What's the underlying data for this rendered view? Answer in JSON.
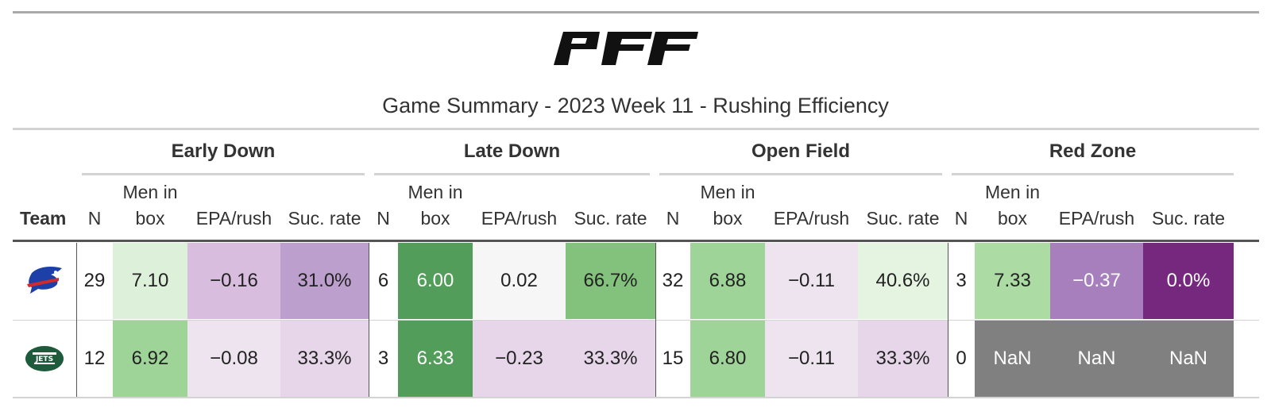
{
  "logo_text": "PFF",
  "title": "Game Summary - 2023 Week 11 - Rushing Efficiency",
  "team_header": "Team",
  "groups": [
    "Early Down",
    "Late Down",
    "Open Field",
    "Red Zone"
  ],
  "subcols": {
    "n": "N",
    "men_l1": "Men in",
    "men_l2": "box",
    "epa": "EPA/rush",
    "suc": "Suc. rate"
  },
  "rows": [
    {
      "team_icon": "bills-logo-icon",
      "cells": [
        "29",
        "7.10",
        "−0.16",
        "31.0%",
        "6",
        "6.00",
        "0.02",
        "66.7%",
        "32",
        "6.88",
        "−0.11",
        "40.6%",
        "3",
        "7.33",
        "−0.37",
        "0.0%"
      ],
      "colors": [
        "#ffffff",
        "#ddf0d9",
        "#d9bddf",
        "#bd9fce",
        "#ffffff",
        "#529d5a",
        "#f6f6f6",
        "#82c27d",
        "#ffffff",
        "#9ed497",
        "#ede4ef",
        "#e5f3e1",
        "#ffffff",
        "#acdba4",
        "#a77fbd",
        "#76287e"
      ]
    },
    {
      "team_icon": "jets-logo-icon",
      "cells": [
        "12",
        "6.92",
        "−0.08",
        "33.3%",
        "3",
        "6.33",
        "−0.23",
        "33.3%",
        "15",
        "6.80",
        "−0.11",
        "33.3%",
        "0",
        "NaN",
        "NaN",
        "NaN"
      ],
      "colors": [
        "#ffffff",
        "#9ed497",
        "#ede4ef",
        "#e7d6ea",
        "#ffffff",
        "#529d5a",
        "#e7d6ea",
        "#e7d6ea",
        "#ffffff",
        "#9ed497",
        "#ede4ef",
        "#e7d6ea",
        "#ffffff",
        "#808080",
        "#808080",
        "#808080"
      ]
    }
  ]
}
